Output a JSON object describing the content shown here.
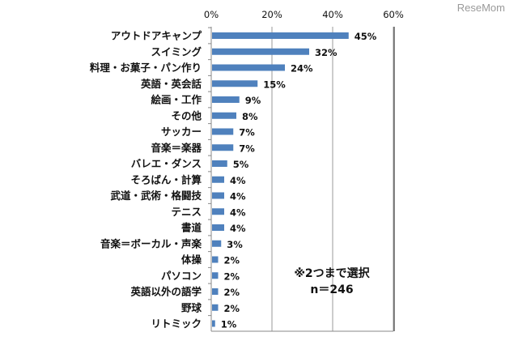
{
  "watermark": "ReseMom",
  "chart_data": {
    "type": "bar",
    "orientation": "horizontal",
    "categories": [
      "アウトドアキャンプ",
      "スイミング",
      "料理・お菓子・パン作り",
      "英語・英会話",
      "絵画・工作",
      "その他",
      "サッカー",
      "音楽＝楽器",
      "バレエ・ダンス",
      "そろばん・計算",
      "武道・武術・格闘技",
      "テニス",
      "書道",
      "音楽＝ボーカル・声楽",
      "体操",
      "パソコン",
      "英語以外の語学",
      "野球",
      "リトミック"
    ],
    "values": [
      45,
      32,
      24,
      15,
      9,
      8,
      7,
      7,
      5,
      4,
      4,
      4,
      4,
      3,
      2,
      2,
      2,
      2,
      1
    ],
    "value_labels": [
      "45%",
      "32%",
      "24%",
      "15%",
      "9%",
      "8%",
      "7%",
      "7%",
      "5%",
      "4%",
      "4%",
      "4%",
      "4%",
      "3%",
      "2%",
      "2%",
      "2%",
      "2%",
      "1%"
    ],
    "xlim": [
      0,
      60
    ],
    "x_ticks": [
      "0%",
      "20%",
      "40%",
      "60%"
    ],
    "x_tick_values": [
      0,
      20,
      40,
      60
    ],
    "bar_color": "#4F81BD",
    "grid": true,
    "annotation": [
      "※2つまで選択",
      "n＝246"
    ]
  }
}
